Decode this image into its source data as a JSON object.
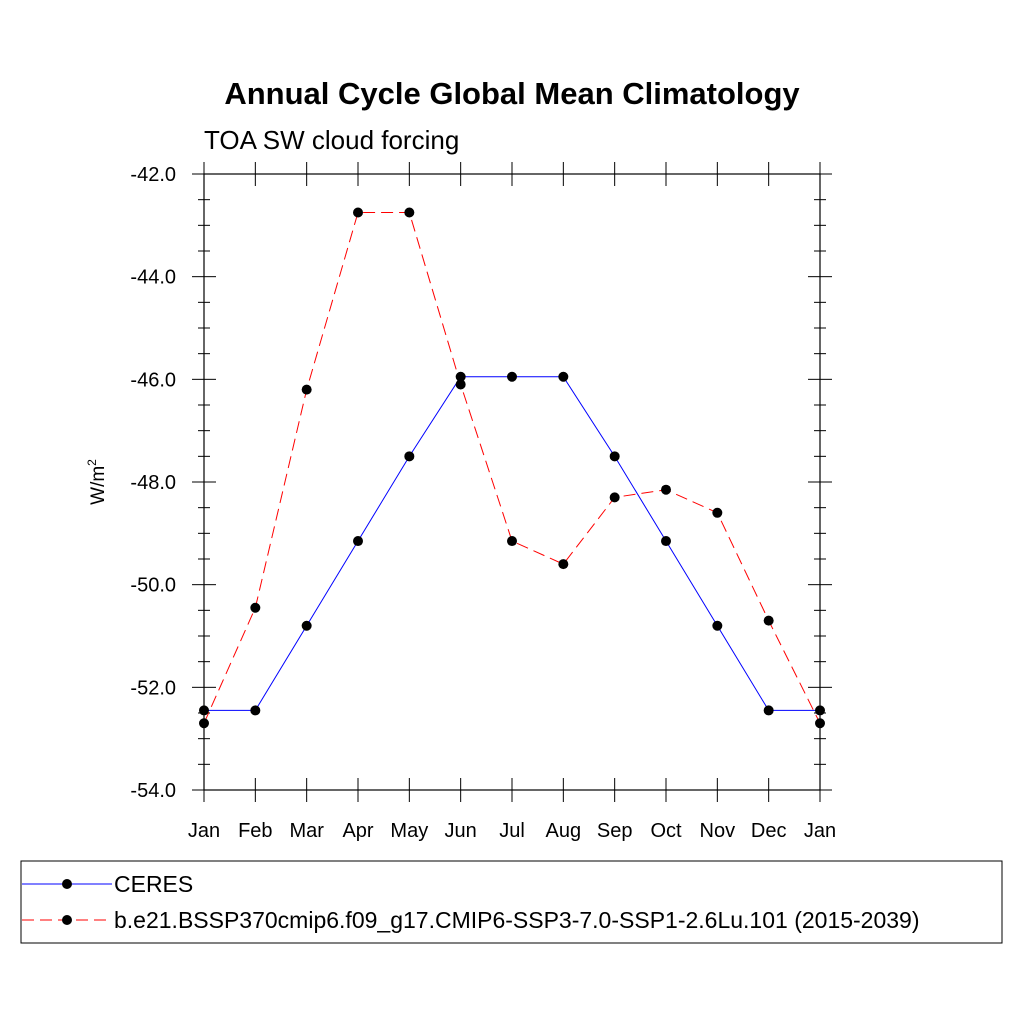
{
  "chart_data": {
    "type": "line",
    "title": "Annual Cycle Global Mean Climatology",
    "subtitle": "TOA SW cloud forcing",
    "ylabel": "W/m",
    "ylabel_superscript": "2",
    "xlabel": "",
    "categories": [
      "Jan",
      "Feb",
      "Mar",
      "Apr",
      "May",
      "Jun",
      "Jul",
      "Aug",
      "Sep",
      "Oct",
      "Nov",
      "Dec",
      "Jan"
    ],
    "ylim": [
      -54.0,
      -42.0
    ],
    "yticks": [
      -42.0,
      -44.0,
      -46.0,
      -48.0,
      -50.0,
      -52.0,
      -54.0
    ],
    "ytick_labels": [
      "-42.0",
      "-44.0",
      "-46.0",
      "-48.0",
      "-50.0",
      "-52.0",
      "-54.0"
    ],
    "grid": false,
    "legend_position": "bottom",
    "series": [
      {
        "name": "CERES",
        "color": "#0000ff",
        "dash": "solid",
        "values": [
          -52.45,
          -52.45,
          -50.8,
          -49.15,
          -47.5,
          -45.95,
          -45.95,
          -45.95,
          -47.5,
          -49.15,
          -50.8,
          -52.45,
          -52.45
        ]
      },
      {
        "name": "b.e21.BSSP370cmip6.f09_g17.CMIP6-SSP3-7.0-SSP1-2.6Lu.101 (2015-2039)",
        "color": "#ff0000",
        "dash": "dashed",
        "values": [
          -52.7,
          -50.45,
          -46.2,
          -42.75,
          -42.75,
          -46.1,
          -49.15,
          -49.6,
          -48.3,
          -48.15,
          -48.6,
          -50.7,
          -52.7
        ]
      }
    ]
  }
}
